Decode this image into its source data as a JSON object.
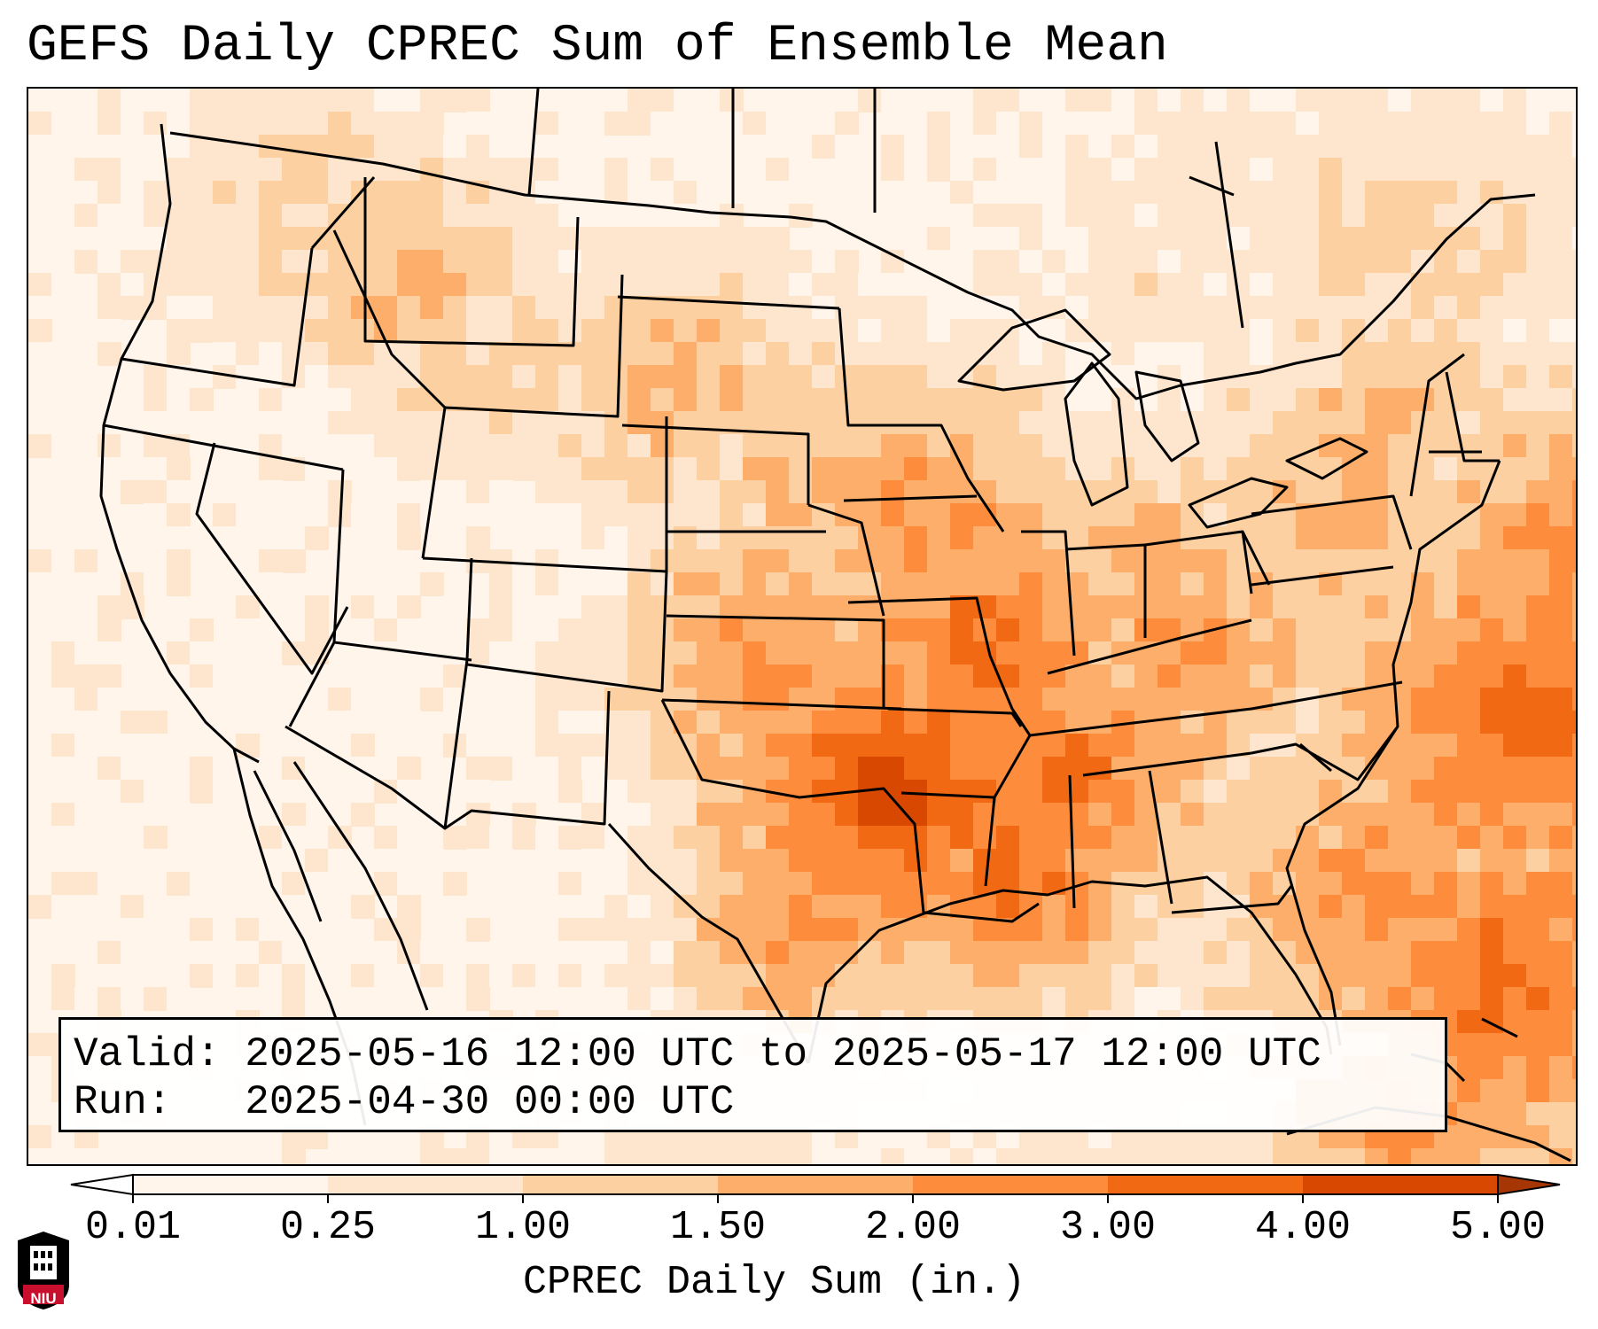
{
  "title": "GEFS Daily CPREC Sum of Ensemble Mean",
  "info": {
    "valid": "Valid: 2025-05-16 12:00 UTC to 2025-05-17 12:00 UTC",
    "run": "Run:   2025-04-30 00:00 UTC"
  },
  "colorbar": {
    "label": "CPREC Daily Sum (in.)",
    "ticks": [
      "0.01",
      "0.25",
      "1.00",
      "1.50",
      "2.00",
      "3.00",
      "4.00",
      "5.00"
    ],
    "colors": [
      "#fff5eb",
      "#fee6ce",
      "#fdd0a2",
      "#fdae6b",
      "#fd8d3c",
      "#f16913",
      "#d94801"
    ],
    "under_color": "#ffffff",
    "over_color": "#a63603"
  },
  "logo": {
    "text": "NIU",
    "color": "#c8102e"
  },
  "map": {
    "projection": "lambert-conformal",
    "region": "CONUS",
    "land_fill": "none",
    "coastline_color": "#000000",
    "heaviest_totals": "Oklahoma / Arkansas / Tennessee / Mississippi and western Atlantic"
  }
}
